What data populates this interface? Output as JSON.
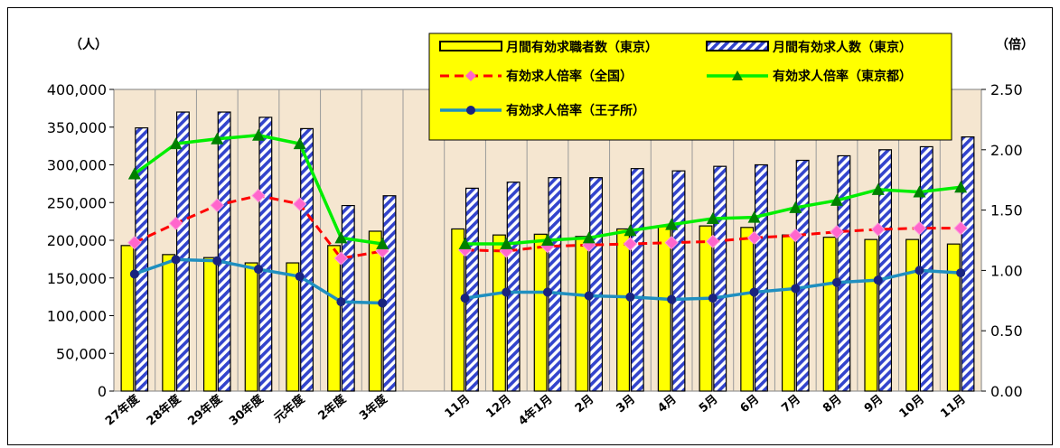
{
  "chart_data": {
    "type": "bar",
    "categories": [
      "27年度",
      "28年度",
      "29年度",
      "30年度",
      "元年度",
      "2年度",
      "3年度",
      "",
      "11月",
      "12月",
      "4年1月",
      "2月",
      "3月",
      "4月",
      "5月",
      "6月",
      "7月",
      "8月",
      "9月",
      "10月",
      "11月"
    ],
    "y_left_label": "（人）",
    "y_right_label": "（倍）",
    "y_left_lim": [
      0,
      400000
    ],
    "y_left_ticks": [
      "0",
      "50,000",
      "100,000",
      "150,000",
      "200,000",
      "250,000",
      "300,000",
      "350,000",
      "400,000"
    ],
    "y_right_lim": [
      0,
      2.5
    ],
    "y_right_ticks": [
      "0.00",
      "0.50",
      "1.00",
      "1.50",
      "2.00",
      "2.50"
    ],
    "legend_position": "top-center",
    "series": [
      {
        "name": "月間有効求職者数（東京）",
        "kind": "bar",
        "axis": "left",
        "color": "#ffff00",
        "values": [
          193000,
          181000,
          177000,
          170000,
          170000,
          193000,
          212000,
          null,
          215000,
          207000,
          208000,
          205000,
          215000,
          218000,
          219000,
          217000,
          207000,
          204000,
          201000,
          201000,
          195000
        ]
      },
      {
        "name": "月間有効求人数（東京）",
        "kind": "bar",
        "axis": "left",
        "color": "#3344cc",
        "values": [
          349000,
          370000,
          370000,
          363000,
          348000,
          246000,
          259000,
          null,
          269000,
          277000,
          283000,
          283000,
          295000,
          292000,
          298000,
          300000,
          306000,
          312000,
          320000,
          324000,
          337000
        ]
      },
      {
        "name": "有効求人倍率（全国）",
        "kind": "line",
        "axis": "right",
        "color": "#ff0000",
        "marker": "#ff66cc",
        "values": [
          1.23,
          1.39,
          1.54,
          1.62,
          1.55,
          1.1,
          1.16,
          null,
          1.17,
          1.16,
          1.2,
          1.21,
          1.22,
          1.23,
          1.24,
          1.27,
          1.29,
          1.32,
          1.34,
          1.35,
          1.35
        ]
      },
      {
        "name": "有効求人倍率（東京都）",
        "kind": "line",
        "axis": "right",
        "color": "#00ee00",
        "marker": "#008000",
        "values": [
          1.8,
          2.05,
          2.09,
          2.12,
          2.05,
          1.27,
          1.22,
          null,
          1.22,
          1.22,
          1.25,
          1.27,
          1.33,
          1.38,
          1.43,
          1.44,
          1.52,
          1.58,
          1.67,
          1.65,
          1.69
        ]
      },
      {
        "name": "有効求人倍率（王子所）",
        "kind": "line",
        "axis": "right",
        "color": "#1f8fc0",
        "marker": "#1a237e",
        "values": [
          0.97,
          1.09,
          1.08,
          1.01,
          0.95,
          0.74,
          0.73,
          null,
          0.77,
          0.82,
          0.82,
          0.79,
          0.78,
          0.76,
          0.77,
          0.82,
          0.85,
          0.9,
          0.92,
          1.0,
          0.98
        ]
      }
    ]
  }
}
